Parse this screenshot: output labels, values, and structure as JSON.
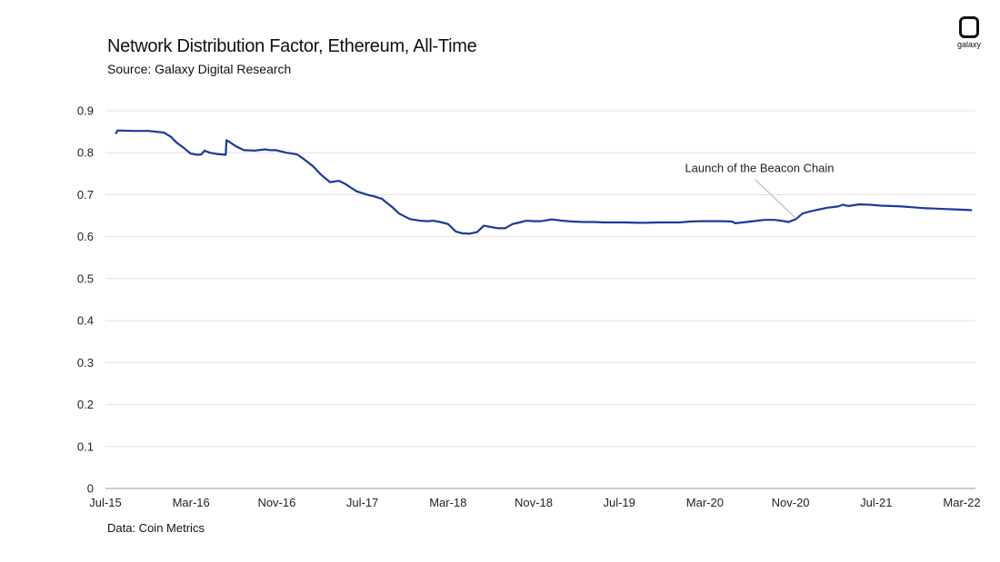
{
  "chart_data": {
    "type": "line",
    "title": "Network Distribution Factor, Ethereum, All-Time",
    "subtitle": "Source: Galaxy Digital Research",
    "footer": "Data: Coin Metrics",
    "xlabel": "",
    "ylabel": "",
    "ylim": [
      0,
      0.9
    ],
    "yticks": [
      "0",
      "0.1",
      "0.2",
      "0.3",
      "0.4",
      "0.5",
      "0.6",
      "0.7",
      "0.8",
      "0.9"
    ],
    "xticks": [
      "Jul-15",
      "Mar-16",
      "Nov-16",
      "Jul-17",
      "Mar-18",
      "Nov-18",
      "Jul-19",
      "Mar-20",
      "Nov-20",
      "Jul-21",
      "Mar-22"
    ],
    "grid": "horizontal",
    "line_color": "#1a3a9c",
    "annotation": {
      "text": "Launch of the Beacon Chain",
      "x": "2020-12-01",
      "y": 0.637
    },
    "series": [
      {
        "x": [
          "2015-07-30",
          "2015-08-05",
          "2015-09-15",
          "2015-11-01",
          "2015-12-15",
          "2016-01-05",
          "2016-01-20",
          "2016-02-10",
          "2016-03-01",
          "2016-03-20",
          "2016-04-01",
          "2016-04-10",
          "2016-04-25",
          "2016-05-15",
          "2016-06-10",
          "2016-06-12",
          "2016-06-20",
          "2016-07-10",
          "2016-08-01",
          "2016-09-01",
          "2016-10-01",
          "2016-10-15",
          "2016-11-01",
          "2016-12-01",
          "2017-01-01",
          "2017-01-20",
          "2017-02-15",
          "2017-03-10",
          "2017-04-05",
          "2017-05-01",
          "2017-05-20",
          "2017-06-05",
          "2017-06-20",
          "2017-07-05",
          "2017-07-20",
          "2017-08-10",
          "2017-09-01",
          "2017-10-01",
          "2017-10-20",
          "2017-11-20",
          "2017-12-20",
          "2018-01-10",
          "2018-01-25",
          "2018-02-15",
          "2018-03-10",
          "2018-04-01",
          "2018-04-20",
          "2018-05-10",
          "2018-06-01",
          "2018-06-20",
          "2018-07-10",
          "2018-08-01",
          "2018-08-20",
          "2018-09-10",
          "2018-10-01",
          "2018-10-20",
          "2018-11-10",
          "2018-12-01",
          "2019-01-01",
          "2019-02-01",
          "2019-03-01",
          "2019-04-01",
          "2019-05-01",
          "2019-06-01",
          "2019-07-01",
          "2019-08-01",
          "2019-09-01",
          "2019-10-01",
          "2019-11-01",
          "2019-12-01",
          "2020-01-01",
          "2020-02-01",
          "2020-03-01",
          "2020-04-01",
          "2020-05-01",
          "2020-06-01",
          "2020-06-10",
          "2020-07-01",
          "2020-08-01",
          "2020-09-01",
          "2020-10-01",
          "2020-10-20",
          "2020-11-10",
          "2020-12-01",
          "2020-12-20",
          "2021-01-10",
          "2021-02-01",
          "2021-03-01",
          "2021-04-01",
          "2021-04-15",
          "2021-05-01",
          "2021-06-01",
          "2021-07-01",
          "2021-08-01",
          "2021-09-01",
          "2021-10-01",
          "2021-11-01",
          "2021-12-01",
          "2022-01-01",
          "2022-02-01",
          "2022-03-01",
          "2022-04-01",
          "2022-04-20"
        ],
        "y": [
          0.845,
          0.853,
          0.852,
          0.852,
          0.848,
          0.838,
          0.825,
          0.812,
          0.798,
          0.795,
          0.796,
          0.805,
          0.8,
          0.797,
          0.795,
          0.83,
          0.826,
          0.815,
          0.806,
          0.805,
          0.808,
          0.806,
          0.806,
          0.8,
          0.796,
          0.785,
          0.768,
          0.748,
          0.73,
          0.733,
          0.725,
          0.716,
          0.708,
          0.704,
          0.7,
          0.696,
          0.69,
          0.67,
          0.655,
          0.642,
          0.638,
          0.637,
          0.638,
          0.635,
          0.63,
          0.612,
          0.608,
          0.607,
          0.611,
          0.626,
          0.623,
          0.62,
          0.62,
          0.63,
          0.634,
          0.638,
          0.637,
          0.637,
          0.641,
          0.638,
          0.636,
          0.635,
          0.635,
          0.634,
          0.634,
          0.634,
          0.633,
          0.633,
          0.634,
          0.634,
          0.634,
          0.636,
          0.637,
          0.637,
          0.637,
          0.636,
          0.632,
          0.634,
          0.637,
          0.64,
          0.64,
          0.638,
          0.635,
          0.642,
          0.655,
          0.66,
          0.664,
          0.669,
          0.672,
          0.676,
          0.673,
          0.677,
          0.676,
          0.674,
          0.673,
          0.672,
          0.67,
          0.668,
          0.667,
          0.666,
          0.665,
          0.664,
          0.663
        ]
      }
    ]
  },
  "logo": {
    "text": "galaxy"
  }
}
